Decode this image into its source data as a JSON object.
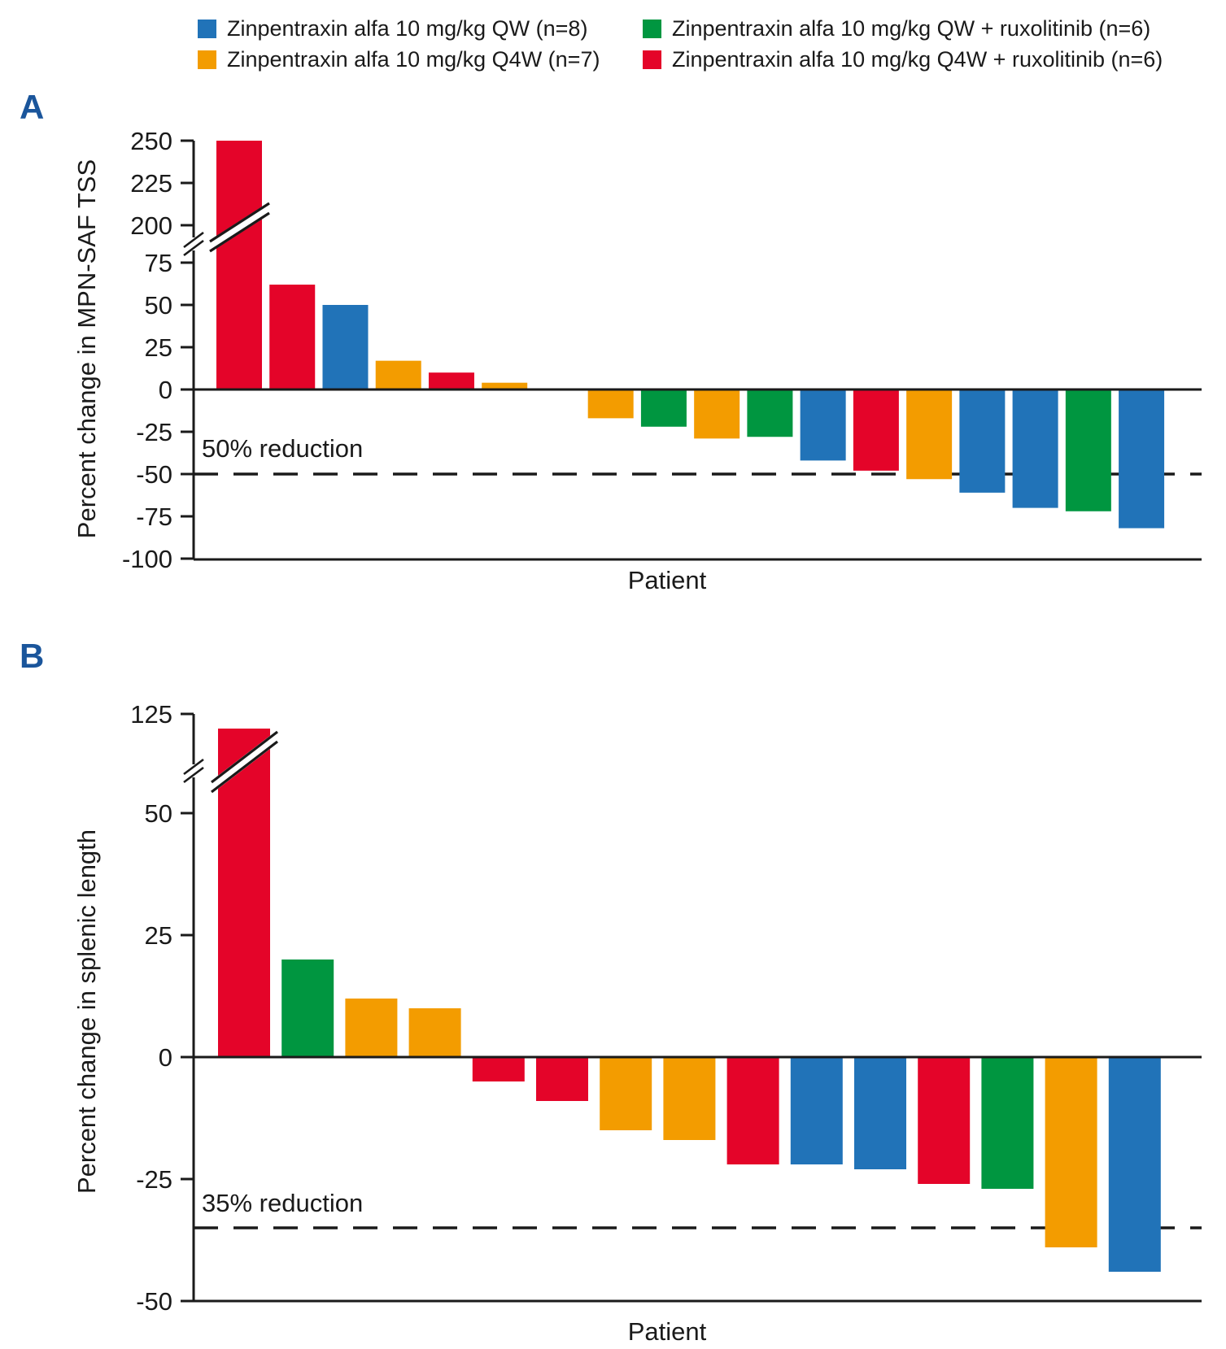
{
  "colors": {
    "blue": "#2173B8",
    "orange": "#F39C00",
    "green": "#009640",
    "red": "#E40429",
    "panel_letter": "#1A559B",
    "text": "#1A1A1A"
  },
  "legend": {
    "items": [
      {
        "label": "Zinpentraxin alfa 10 mg/kg QW (n=8)",
        "color": "blue"
      },
      {
        "label": "Zinpentraxin alfa 10 mg/kg Q4W (n=7)",
        "color": "orange"
      },
      {
        "label": "Zinpentraxin alfa 10 mg/kg QW + ruxolitinib (n=6)",
        "color": "green"
      },
      {
        "label": "Zinpentraxin alfa 10 mg/kg Q4W + ruxolitinib (n=6)",
        "color": "red"
      }
    ]
  },
  "chart_data": [
    {
      "type": "bar",
      "panel_label": "A",
      "ylabel": "Percent change in MPN-SAF TSS",
      "xlabel": "Patient",
      "y_ticks": [
        250,
        225,
        200,
        75,
        50,
        25,
        0,
        -25,
        -50,
        -75,
        -100
      ],
      "ylim": [
        -100,
        250
      ],
      "axis_break_between": [
        75,
        200
      ],
      "reference_line": {
        "value": -50,
        "label": "50% reduction",
        "style": "dashed"
      },
      "bars": [
        {
          "value": 250,
          "color": "red",
          "axis_break_marker": true
        },
        {
          "value": 62,
          "color": "red"
        },
        {
          "value": 50,
          "color": "blue"
        },
        {
          "value": 17,
          "color": "orange"
        },
        {
          "value": 10,
          "color": "red"
        },
        {
          "value": 4,
          "color": "orange"
        },
        {
          "value": 0,
          "color": null
        },
        {
          "value": -17,
          "color": "orange"
        },
        {
          "value": -22,
          "color": "green"
        },
        {
          "value": -29,
          "color": "orange"
        },
        {
          "value": -28,
          "color": "green"
        },
        {
          "value": -42,
          "color": "blue"
        },
        {
          "value": -48,
          "color": "red"
        },
        {
          "value": -53,
          "color": "orange"
        },
        {
          "value": -61,
          "color": "blue"
        },
        {
          "value": -70,
          "color": "blue"
        },
        {
          "value": -72,
          "color": "green"
        },
        {
          "value": -82,
          "color": "blue"
        }
      ]
    },
    {
      "type": "bar",
      "panel_label": "B",
      "ylabel": "Percent change in splenic length",
      "xlabel": "Patient",
      "y_ticks": [
        125,
        50,
        25,
        0,
        -25,
        -50
      ],
      "ylim": [
        -50,
        125
      ],
      "axis_break_between": [
        50,
        125
      ],
      "reference_line": {
        "value": -35,
        "label": "35% reduction",
        "style": "dashed"
      },
      "bars": [
        {
          "value": 122,
          "color": "red",
          "axis_break_marker": true
        },
        {
          "value": 20,
          "color": "green"
        },
        {
          "value": 12,
          "color": "orange"
        },
        {
          "value": 10,
          "color": "orange"
        },
        {
          "value": -5,
          "color": "red"
        },
        {
          "value": -9,
          "color": "red"
        },
        {
          "value": -15,
          "color": "orange"
        },
        {
          "value": -17,
          "color": "orange"
        },
        {
          "value": -22,
          "color": "red"
        },
        {
          "value": -22,
          "color": "blue"
        },
        {
          "value": -23,
          "color": "blue"
        },
        {
          "value": -26,
          "color": "red"
        },
        {
          "value": -27,
          "color": "green"
        },
        {
          "value": -39,
          "color": "orange"
        },
        {
          "value": -44,
          "color": "blue"
        }
      ]
    }
  ]
}
